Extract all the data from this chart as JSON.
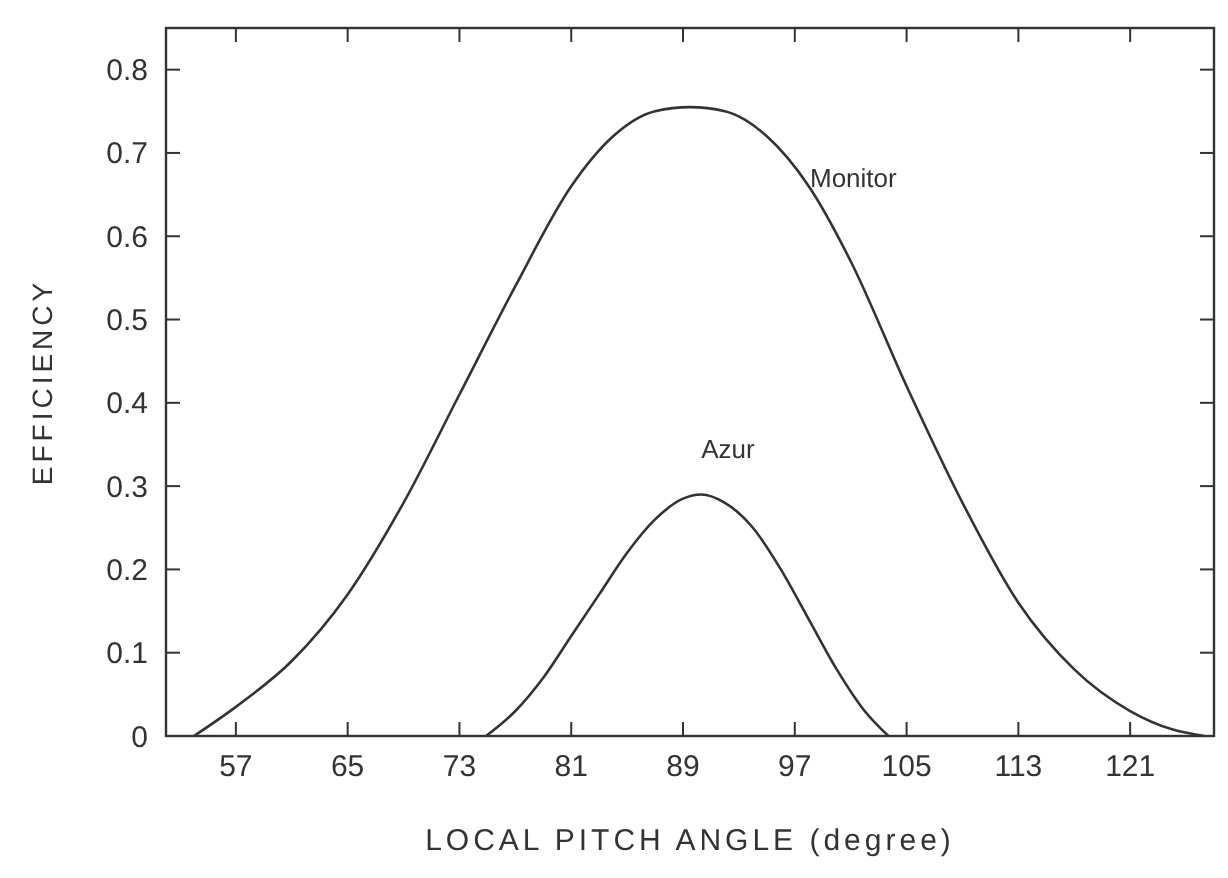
{
  "chart_data": {
    "type": "line",
    "xlabel": "LOCAL PITCH ANGLE  (degree)",
    "ylabel": "EFFICIENCY",
    "xlim": [
      52,
      127
    ],
    "xticks": [
      57,
      65,
      73,
      81,
      89,
      97,
      105,
      113,
      121
    ],
    "ylim": [
      0,
      0.85
    ],
    "yticks": [
      0,
      0.1,
      0.2,
      0.3,
      0.4,
      0.5,
      0.6,
      0.7,
      0.8
    ],
    "grid": false,
    "legend": false,
    "marker": "none",
    "line_style": "solid",
    "series": [
      {
        "name": "Monitor",
        "color": "#333333",
        "x": [
          54,
          57,
          61,
          65,
          69,
          73,
          77,
          81,
          84,
          87,
          89.5,
          92,
          95,
          98,
          101,
          105,
          109,
          113,
          117,
          121,
          124,
          126.3
        ],
        "values": [
          0,
          0.035,
          0.09,
          0.17,
          0.28,
          0.41,
          0.54,
          0.66,
          0.72,
          0.75,
          0.755,
          0.75,
          0.72,
          0.66,
          0.57,
          0.42,
          0.28,
          0.16,
          0.08,
          0.03,
          0.008,
          0
        ]
      },
      {
        "name": "Azur",
        "color": "#333333",
        "x": [
          74.9,
          77,
          79,
          81,
          83,
          85,
          87,
          89,
          90.3,
          92,
          94,
          96,
          98,
          100,
          102,
          103.7
        ],
        "values": [
          0,
          0.03,
          0.07,
          0.12,
          0.17,
          0.22,
          0.26,
          0.285,
          0.29,
          0.28,
          0.25,
          0.2,
          0.14,
          0.08,
          0.03,
          0
        ]
      }
    ]
  }
}
